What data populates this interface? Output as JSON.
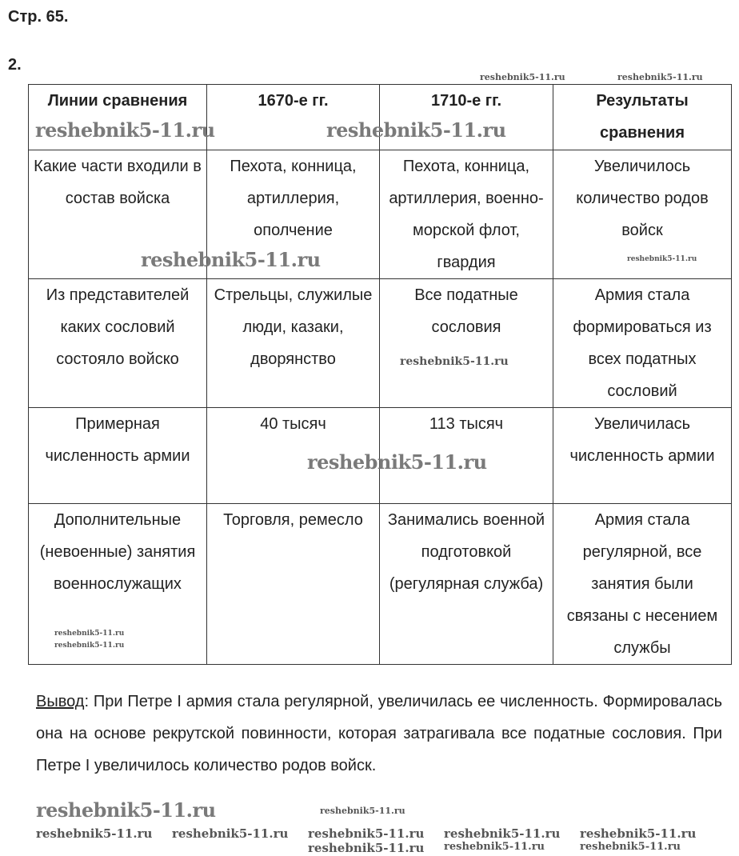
{
  "page_label": "Стр. 65.",
  "task_number": "2.",
  "table": {
    "headers": [
      "Линии сравнения",
      "1670-е гг.",
      "1710-е гг.",
      "Результаты сравнения"
    ],
    "rows": [
      [
        "Какие части входили в состав войска",
        "Пехота, конница, артиллерия, ополчение",
        "Пехота, конница, артиллерия, военно-морской флот, гвардия",
        "Увеличилось количество родов войск"
      ],
      [
        "Из представителей каких сословий состояло войско",
        "Стрельцы, служилые люди, казаки, дворянство",
        "Все податные сословия",
        "Армия стала формироваться из всех податных сословий"
      ],
      [
        "Примерная численность армии",
        "40 тысяч",
        "113 тысяч",
        "Увеличилась численность армии"
      ],
      [
        "Дополнительные (невоенные) занятия военнослужащих",
        "Торговля, ремесло",
        "Занимались военной подготовкой (регулярная служба)",
        "Армия стала регулярной, все занятия были связаны с несением службы"
      ]
    ]
  },
  "conclusion": {
    "label": "Вывод",
    "text": ": При Петре I армия стала регулярной, увеличилась ее численность. Формировалась она на основе рекрутской повинности, которая затрагивала все податные сословия. При Петре I увеличилось количество родов войск."
  },
  "watermark": "reshebnik5-11.ru"
}
